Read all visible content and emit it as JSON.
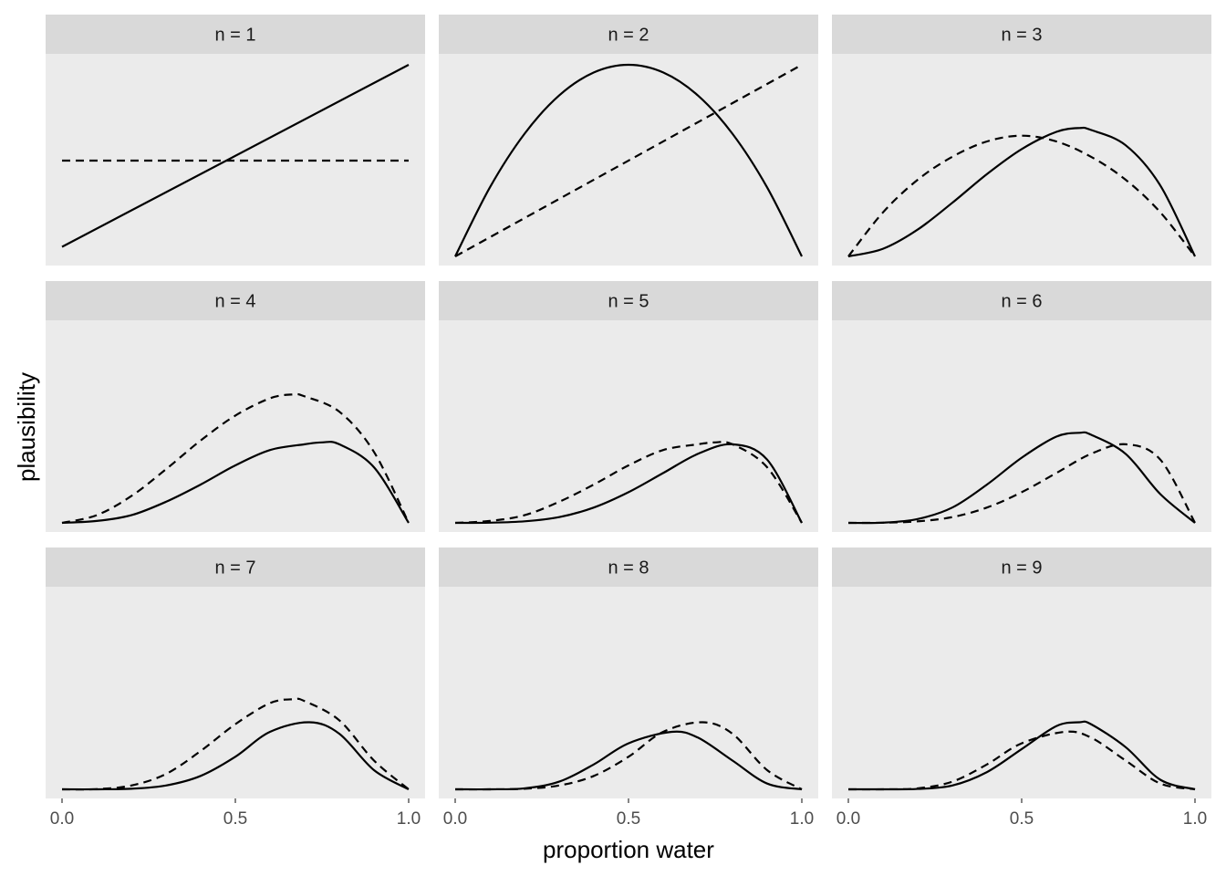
{
  "chart_data": {
    "type": "line",
    "layout": "faceted 3x3 grid",
    "xlabel": "proportion water",
    "ylabel": "plausibility",
    "xlim": [
      0,
      1
    ],
    "x_ticks": [
      0.0,
      0.5,
      1.0
    ],
    "x_tick_labels": [
      "0.0",
      "0.5",
      "1.0"
    ],
    "y_ticks": [],
    "grid": false,
    "panel_background": "#e5e5e5",
    "strip_background": "#d1d1d1",
    "line_color": "#000000",
    "legend": "none",
    "line_styles": [
      "solid",
      "dashed"
    ],
    "panels": [
      {
        "label": "n = 1",
        "curves": [
          {
            "style": "solid",
            "x": [
              0,
              1
            ],
            "y": [
              0.05,
              1.0
            ]
          },
          {
            "style": "dashed",
            "x": [
              0,
              1
            ],
            "y": [
              0.5,
              0.5
            ]
          }
        ]
      },
      {
        "label": "n = 2",
        "curves": [
          {
            "style": "solid",
            "x": [
              0,
              0.1,
              0.2,
              0.3,
              0.4,
              0.5,
              0.6,
              0.7,
              0.8,
              0.9,
              1.0
            ],
            "y": [
              0.0,
              0.36,
              0.64,
              0.84,
              0.96,
              1.0,
              0.96,
              0.84,
              0.64,
              0.36,
              0.0
            ]
          },
          {
            "style": "dashed",
            "x": [
              0,
              1
            ],
            "y": [
              0.0,
              1.0
            ]
          }
        ]
      },
      {
        "label": "n = 3",
        "curves": [
          {
            "style": "solid",
            "x": [
              0,
              0.1,
              0.2,
              0.3,
              0.4,
              0.5,
              0.6,
              0.667,
              0.7,
              0.8,
              0.9,
              1.0
            ],
            "y": [
              0.0,
              0.04,
              0.14,
              0.28,
              0.43,
              0.56,
              0.65,
              0.67,
              0.66,
              0.58,
              0.37,
              0.0
            ]
          },
          {
            "style": "dashed",
            "x": [
              0,
              0.1,
              0.2,
              0.3,
              0.4,
              0.5,
              0.6,
              0.7,
              0.8,
              0.9,
              1.0
            ],
            "y": [
              0.0,
              0.23,
              0.4,
              0.52,
              0.6,
              0.63,
              0.6,
              0.52,
              0.4,
              0.23,
              0.0
            ]
          }
        ]
      },
      {
        "label": "n = 4",
        "curves": [
          {
            "style": "solid",
            "x": [
              0,
              0.1,
              0.2,
              0.3,
              0.4,
              0.5,
              0.6,
              0.7,
              0.75,
              0.8,
              0.9,
              1.0
            ],
            "y": [
              0.0,
              0.01,
              0.04,
              0.11,
              0.2,
              0.3,
              0.38,
              0.41,
              0.42,
              0.41,
              0.29,
              0.0
            ]
          },
          {
            "style": "dashed",
            "x": [
              0,
              0.1,
              0.2,
              0.3,
              0.4,
              0.5,
              0.6,
              0.667,
              0.7,
              0.8,
              0.9,
              1.0
            ],
            "y": [
              0.0,
              0.04,
              0.14,
              0.28,
              0.43,
              0.56,
              0.65,
              0.67,
              0.66,
              0.58,
              0.37,
              0.0
            ]
          }
        ]
      },
      {
        "label": "n = 5",
        "curves": [
          {
            "style": "solid",
            "x": [
              0,
              0.1,
              0.2,
              0.3,
              0.4,
              0.5,
              0.6,
              0.7,
              0.8,
              0.9,
              1.0
            ],
            "y": [
              0.0,
              0.001,
              0.008,
              0.03,
              0.08,
              0.16,
              0.26,
              0.36,
              0.41,
              0.33,
              0.0
            ]
          },
          {
            "style": "dashed",
            "x": [
              0,
              0.1,
              0.2,
              0.3,
              0.4,
              0.5,
              0.6,
              0.7,
              0.75,
              0.8,
              0.9,
              1.0
            ],
            "y": [
              0.0,
              0.01,
              0.04,
              0.11,
              0.2,
              0.3,
              0.38,
              0.41,
              0.42,
              0.41,
              0.29,
              0.0
            ]
          }
        ]
      },
      {
        "label": "n = 6",
        "curves": [
          {
            "style": "solid",
            "x": [
              0,
              0.1,
              0.2,
              0.3,
              0.4,
              0.5,
              0.6,
              0.667,
              0.7,
              0.8,
              0.9,
              1.0
            ],
            "y": [
              0.0,
              0.001,
              0.02,
              0.08,
              0.2,
              0.34,
              0.45,
              0.47,
              0.46,
              0.36,
              0.15,
              0.0
            ]
          },
          {
            "style": "dashed",
            "x": [
              0,
              0.1,
              0.2,
              0.3,
              0.4,
              0.5,
              0.6,
              0.7,
              0.8,
              0.9,
              1.0
            ],
            "y": [
              0.0,
              0.001,
              0.008,
              0.03,
              0.08,
              0.16,
              0.26,
              0.36,
              0.41,
              0.33,
              0.0
            ]
          }
        ]
      },
      {
        "label": "n = 7",
        "curves": [
          {
            "style": "solid",
            "x": [
              0,
              0.1,
              0.2,
              0.3,
              0.4,
              0.5,
              0.6,
              0.714,
              0.8,
              0.9,
              1.0
            ],
            "y": [
              0.0,
              0.0,
              0.003,
              0.02,
              0.07,
              0.17,
              0.3,
              0.35,
              0.29,
              0.1,
              0.0
            ]
          },
          {
            "style": "dashed",
            "x": [
              0,
              0.1,
              0.2,
              0.3,
              0.4,
              0.5,
              0.6,
              0.667,
              0.7,
              0.8,
              0.9,
              1.0
            ],
            "y": [
              0.0,
              0.001,
              0.02,
              0.08,
              0.2,
              0.34,
              0.45,
              0.47,
              0.46,
              0.36,
              0.15,
              0.0
            ]
          }
        ]
      },
      {
        "label": "n = 8",
        "curves": [
          {
            "style": "solid",
            "x": [
              0,
              0.1,
              0.2,
              0.3,
              0.4,
              0.5,
              0.625,
              0.7,
              0.8,
              0.9,
              1.0
            ],
            "y": [
              0.0,
              0.0,
              0.005,
              0.04,
              0.13,
              0.24,
              0.3,
              0.27,
              0.15,
              0.03,
              0.0
            ]
          },
          {
            "style": "dashed",
            "x": [
              0,
              0.1,
              0.2,
              0.3,
              0.4,
              0.5,
              0.6,
              0.714,
              0.8,
              0.9,
              1.0
            ],
            "y": [
              0.0,
              0.0,
              0.003,
              0.02,
              0.07,
              0.17,
              0.3,
              0.35,
              0.29,
              0.1,
              0.0
            ]
          }
        ]
      },
      {
        "label": "n = 9",
        "curves": [
          {
            "style": "solid",
            "x": [
              0,
              0.1,
              0.2,
              0.3,
              0.4,
              0.5,
              0.6,
              0.667,
              0.7,
              0.8,
              0.9,
              1.0
            ],
            "y": [
              0.0,
              0.0,
              0.002,
              0.02,
              0.09,
              0.21,
              0.33,
              0.35,
              0.34,
              0.22,
              0.05,
              0.0
            ]
          },
          {
            "style": "dashed",
            "x": [
              0,
              0.1,
              0.2,
              0.3,
              0.4,
              0.5,
              0.625,
              0.7,
              0.8,
              0.9,
              1.0
            ],
            "y": [
              0.0,
              0.0,
              0.005,
              0.04,
              0.13,
              0.24,
              0.3,
              0.27,
              0.15,
              0.03,
              0.0
            ]
          }
        ]
      }
    ]
  }
}
